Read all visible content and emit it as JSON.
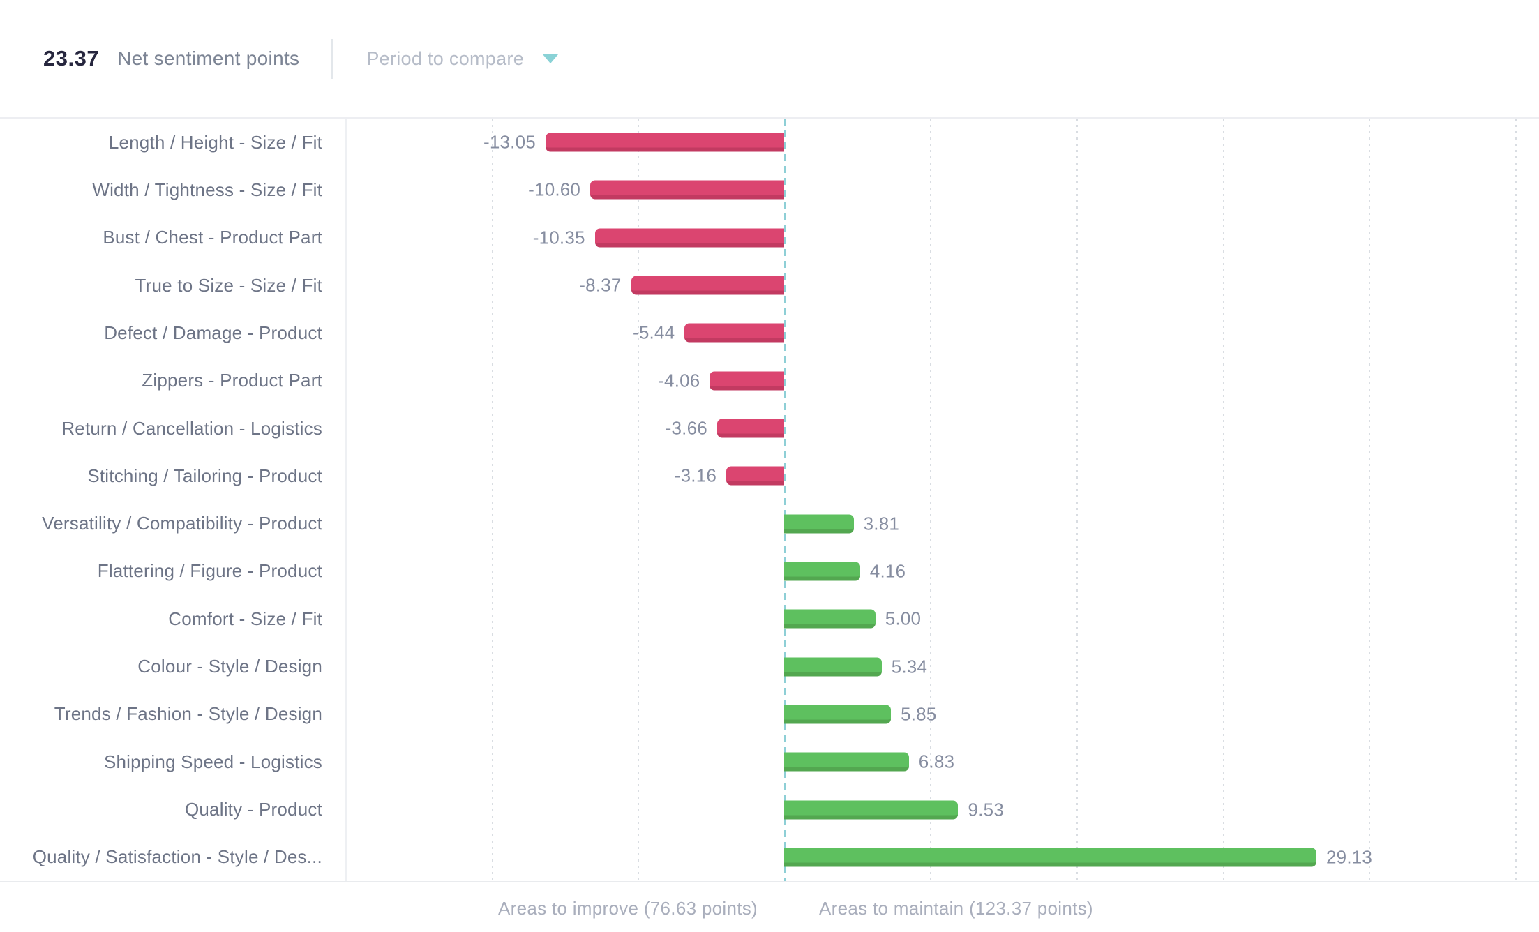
{
  "header": {
    "score": "23.37",
    "score_label": "Net sentiment points",
    "period_selector": "Period to compare"
  },
  "chart_data": {
    "type": "bar",
    "orientation": "horizontal",
    "title": "Net sentiment points",
    "net_score": 23.37,
    "xlim": [
      -24,
      40
    ],
    "gridline_values": [
      -16,
      -8,
      8,
      16,
      24,
      32,
      40
    ],
    "zero_line": 0,
    "grid": "dotted-vertical",
    "legend_position": "none",
    "categories": [
      "Length / Height - Size / Fit",
      "Width / Tightness - Size / Fit",
      "Bust / Chest - Product Part",
      "True to Size - Size / Fit",
      "Defect / Damage - Product",
      "Zippers - Product Part",
      "Return / Cancellation - Logistics",
      "Stitching / Tailoring - Product",
      "Versatility / Compatibility - Product",
      "Flattering / Figure - Product",
      "Comfort - Size / Fit",
      "Colour - Style / Design",
      "Trends / Fashion - Style / Design",
      "Shipping Speed - Logistics",
      "Quality - Product",
      "Quality / Satisfaction - Style / Des..."
    ],
    "values": [
      -13.05,
      -10.6,
      -10.35,
      -8.37,
      -5.44,
      -4.06,
      -3.66,
      -3.16,
      3.81,
      4.16,
      5.0,
      5.34,
      5.85,
      6.83,
      9.53,
      29.13
    ],
    "value_labels": [
      "-13.05",
      "-10.60",
      "-10.35",
      "-8.37",
      "-5.44",
      "-4.06",
      "-3.66",
      "-3.16",
      "3.81",
      "4.16",
      "5.00",
      "5.34",
      "5.85",
      "6.83",
      "9.53",
      "29.13"
    ],
    "colors": {
      "negative_bar": "#db4570",
      "negative_bar_shade": "#c23a61",
      "positive_bar": "#5ec05f",
      "positive_bar_shade": "#53a750",
      "zero_line": "#8ecfd6",
      "accent_teal": "#8ad2d6"
    }
  },
  "footer": {
    "improve_label": "Areas to improve (76.63 points)",
    "maintain_label": "Areas to maintain (123.37 points)"
  }
}
